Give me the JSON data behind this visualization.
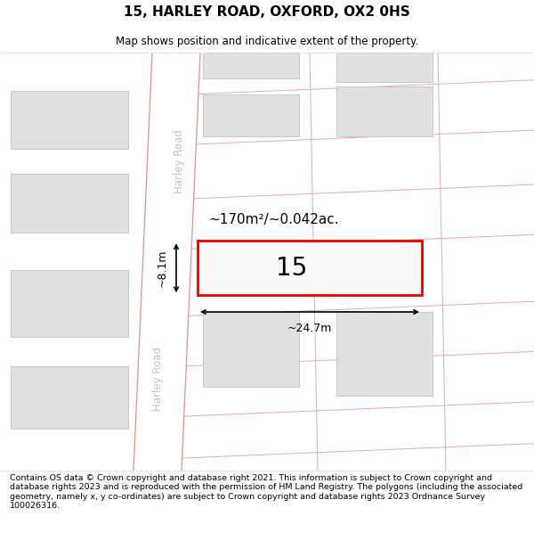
{
  "title": "15, HARLEY ROAD, OXFORD, OX2 0HS",
  "subtitle": "Map shows position and indicative extent of the property.",
  "footer": "Contains OS data © Crown copyright and database right 2021. This information is subject to Crown copyright and database rights 2023 and is reproduced with the permission of HM Land Registry. The polygons (including the associated geometry, namely x, y co-ordinates) are subject to Crown copyright and database rights 2023 Ordnance Survey 100026316.",
  "background_color": "#ffffff",
  "map_background": "#f5f5f5",
  "road_color": "#ffffff",
  "road_stripe_color": "#e8a0a0",
  "building_fill": "#e0e0e0",
  "building_edge": "#c8c8c8",
  "highlight_fill": "#f8f8f8",
  "highlight_edge": "#ee0000",
  "road_label": "Harley Road",
  "road_label_color": "#c0c0c0",
  "area_label": "~170m²/~0.042ac.",
  "width_label": "~24.7m",
  "height_label": "~8.1m",
  "plot_number": "15",
  "title_fontsize": 11,
  "subtitle_fontsize": 8.5,
  "footer_fontsize": 6.8
}
